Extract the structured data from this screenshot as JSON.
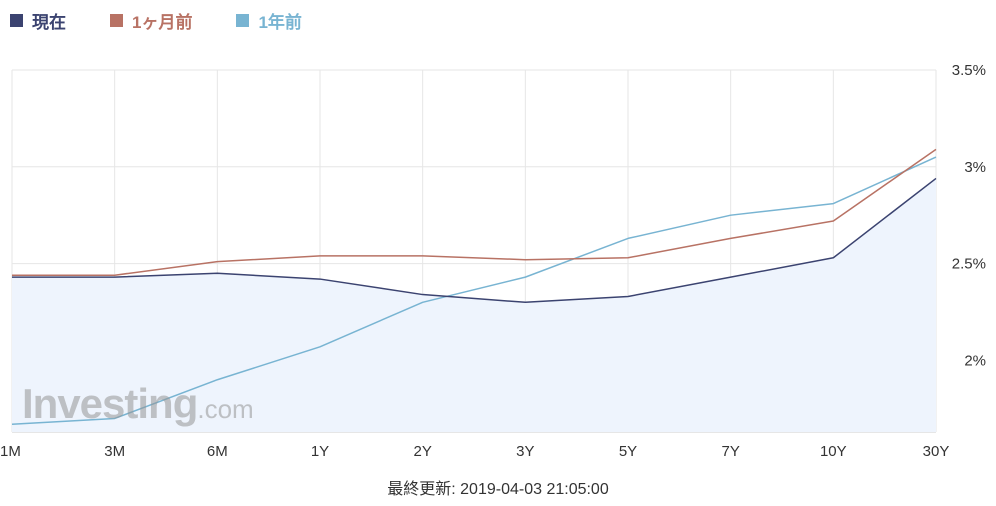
{
  "legend": {
    "items": [
      {
        "label": "現在",
        "color": "#3b4370"
      },
      {
        "label": "1ヶ月前",
        "color": "#b87264"
      },
      {
        "label": "1年前",
        "color": "#78b4d2"
      }
    ]
  },
  "watermark": {
    "main": "Investing",
    "suffix": ".com"
  },
  "footer": {
    "label": "最終更新: 2019-04-03 21:05:00"
  },
  "colors": {
    "grid": "#e6e6e6",
    "fill": "#eef4fd"
  },
  "chart_data": {
    "type": "line",
    "categories": [
      "1M",
      "3M",
      "6M",
      "1Y",
      "2Y",
      "3Y",
      "5Y",
      "7Y",
      "10Y",
      "30Y"
    ],
    "y_ticks": [
      {
        "value": 2.0,
        "label": "2%"
      },
      {
        "value": 2.5,
        "label": "2.5%"
      },
      {
        "value": 3.0,
        "label": "3%"
      },
      {
        "value": 3.5,
        "label": "3.5%"
      }
    ],
    "ylim": [
      1.63,
      3.5
    ],
    "y_axis_position": "right",
    "grid": true,
    "legend_position": "top-left",
    "series": [
      {
        "name": "現在",
        "color": "#3b4370",
        "filled": true,
        "values": [
          2.43,
          2.43,
          2.45,
          2.42,
          2.34,
          2.3,
          2.33,
          2.43,
          2.53,
          2.94
        ]
      },
      {
        "name": "1ヶ月前",
        "color": "#b87264",
        "filled": false,
        "values": [
          2.44,
          2.44,
          2.51,
          2.54,
          2.54,
          2.52,
          2.53,
          2.63,
          2.72,
          3.09
        ]
      },
      {
        "name": "1年前",
        "color": "#78b4d2",
        "filled": false,
        "values": [
          1.67,
          1.7,
          1.9,
          2.07,
          2.3,
          2.43,
          2.63,
          2.75,
          2.81,
          3.05
        ]
      }
    ]
  }
}
